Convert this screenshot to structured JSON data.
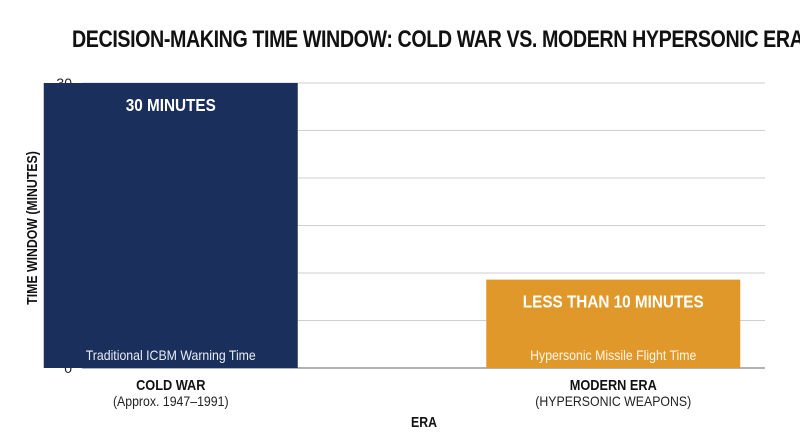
{
  "chart_data": {
    "type": "bar",
    "title": "DECISION-MAKING TIME WINDOW: COLD WAR VS. MODERN HYPERSONIC ERA",
    "xlabel": "ERA",
    "ylabel": "TIME WINDOW (MINUTES)",
    "ylim": [
      0,
      30
    ],
    "yticks": [
      0,
      5,
      10,
      15,
      20,
      25,
      30
    ],
    "grid": true,
    "categories": [
      {
        "name": "COLD WAR",
        "sub": "(Approx. 1947–1991)"
      },
      {
        "name": "MODERN ERA",
        "sub": "(HYPERSONIC WEAPONS)"
      }
    ],
    "values": [
      30,
      9.3
    ],
    "bar_value_labels": [
      "30 MINUTES",
      "LESS THAN 10 MINUTES"
    ],
    "bar_inner_labels": [
      "Traditional ICBM Warning Time",
      "Hypersonic Missile Flight Time"
    ],
    "colors": [
      "#1b2f5c",
      "#e0982a"
    ]
  }
}
